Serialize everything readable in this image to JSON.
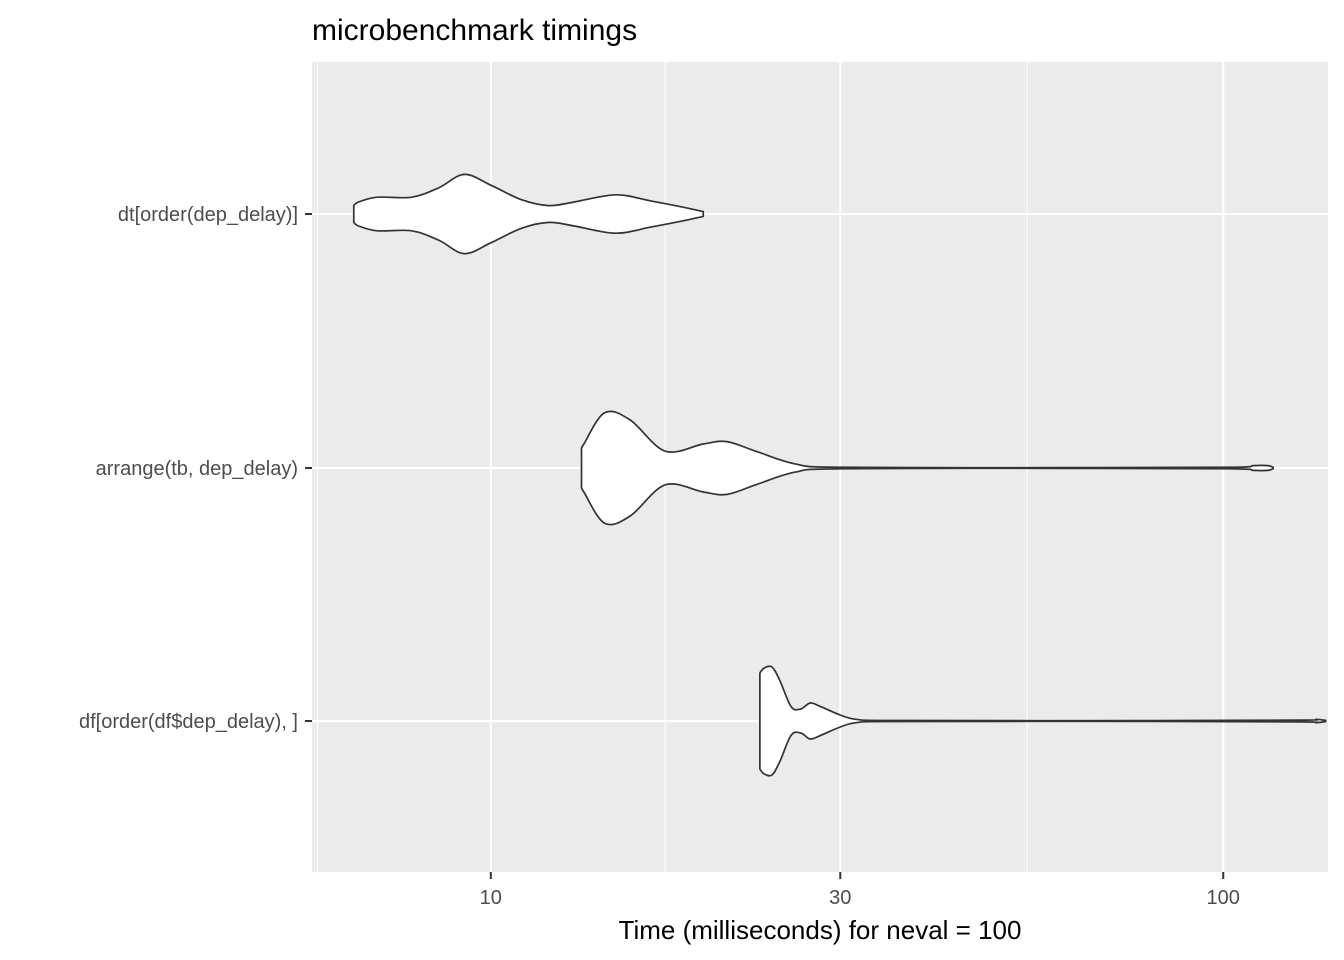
{
  "chart_data": {
    "type": "violin",
    "title": "microbenchmark timings",
    "xlabel": "Time (milliseconds) for neval = 100",
    "ylabel": "",
    "x_scale": "log10",
    "xlim": [
      5.7,
      139
    ],
    "x_ticks": [
      10,
      30,
      100
    ],
    "x_tick_labels": [
      "10",
      "30",
      "100"
    ],
    "x_minor_ticks": [
      5.8,
      17.3,
      54
    ],
    "grid": true,
    "legend": "none",
    "categories": [
      "dt[order(dep_delay)]",
      "arrange(tb, dep_delay)",
      "df[order(df$dep_delay), ]"
    ],
    "series": [
      {
        "category": "dt[order(dep_delay)]",
        "range": [
          6.5,
          19.5
        ],
        "density_profile": [
          [
            6.5,
            0.07
          ],
          [
            6.6,
            0.1
          ],
          [
            7.0,
            0.14
          ],
          [
            7.8,
            0.14
          ],
          [
            8.5,
            0.22
          ],
          [
            9.2,
            0.33
          ],
          [
            10.0,
            0.24
          ],
          [
            11.0,
            0.12
          ],
          [
            12.0,
            0.07
          ],
          [
            13.0,
            0.1
          ],
          [
            14.8,
            0.16
          ],
          [
            16.5,
            0.11
          ],
          [
            18.2,
            0.06
          ],
          [
            19.5,
            0.02
          ]
        ]
      },
      {
        "category": "arrange(tb, dep_delay)",
        "range": [
          13.3,
          117
        ],
        "density_profile": [
          [
            13.3,
            0.16
          ],
          [
            13.4,
            0.2
          ],
          [
            14.3,
            0.46
          ],
          [
            15.5,
            0.4
          ],
          [
            17.3,
            0.14
          ],
          [
            19.5,
            0.2
          ],
          [
            21.0,
            0.22
          ],
          [
            23.0,
            0.14
          ],
          [
            26.0,
            0.035
          ],
          [
            30.0,
            0.006
          ],
          [
            60.0,
            0.003
          ],
          [
            102.0,
            0.006
          ],
          [
            110.0,
            0.02
          ],
          [
            115.0,
            0.02
          ],
          [
            117.0,
            0.005
          ]
        ]
      },
      {
        "category": "df[order(df$dep_delay), ]",
        "range": [
          23.3,
          138
        ],
        "density_profile": [
          [
            23.3,
            0.4
          ],
          [
            23.6,
            0.44
          ],
          [
            24.2,
            0.45
          ],
          [
            24.8,
            0.34
          ],
          [
            25.7,
            0.12
          ],
          [
            26.5,
            0.1
          ],
          [
            27.3,
            0.15
          ],
          [
            28.2,
            0.12
          ],
          [
            30.0,
            0.05
          ],
          [
            31.7,
            0.012
          ],
          [
            36.0,
            0.004
          ],
          [
            80.0,
            0.003
          ],
          [
            128.0,
            0.007
          ],
          [
            134.0,
            0.014
          ],
          [
            138.0,
            0.004
          ]
        ]
      }
    ]
  }
}
